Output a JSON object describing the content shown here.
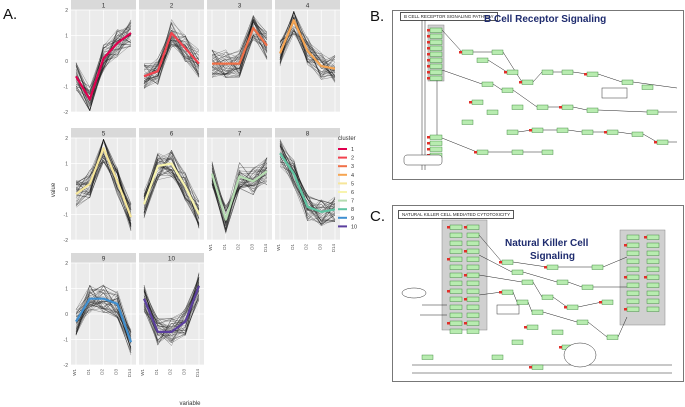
{
  "panel_labels": {
    "a": "A.",
    "b": "B.",
    "c": "C."
  },
  "chart_data": {
    "type": "line",
    "title": "",
    "xlabel": "variable",
    "ylabel": "value",
    "x": [
      "W1",
      "D1",
      "D2",
      "D3",
      "D14"
    ],
    "ylim": [
      -2,
      2
    ],
    "yticks": [
      -2,
      -1,
      0,
      1,
      2
    ],
    "legend_title": "cluster",
    "panels": [
      {
        "name": "1",
        "color": "#e0004f",
        "values": [
          -0.6,
          -1.5,
          0.1,
          0.7,
          1.1
        ]
      },
      {
        "name": "2",
        "color": "#f2434f",
        "values": [
          -0.6,
          -0.4,
          1.1,
          0.5,
          -0.1
        ]
      },
      {
        "name": "3",
        "color": "#f07048",
        "values": [
          -0.1,
          -0.1,
          -0.1,
          1.3,
          0.6
        ]
      },
      {
        "name": "4",
        "color": "#f6a552",
        "values": [
          0.3,
          1.6,
          0.4,
          -0.2,
          -0.3
        ]
      },
      {
        "name": "5",
        "color": "#f6e69a",
        "values": [
          -0.2,
          0.2,
          1.6,
          0.3,
          -1.1
        ]
      },
      {
        "name": "6",
        "color": "#f8f4ae",
        "values": [
          -0.6,
          0.9,
          1.0,
          0.1,
          -1.0
        ]
      },
      {
        "name": "7",
        "color": "#b5ddb1",
        "values": [
          0.6,
          -1.2,
          0.5,
          0.3,
          0.7
        ]
      },
      {
        "name": "8",
        "color": "#5fc4a2",
        "values": [
          1.4,
          0.6,
          -0.7,
          -0.9,
          -0.8
        ]
      },
      {
        "name": "9",
        "color": "#3f8fd0",
        "values": [
          -0.3,
          0.6,
          0.6,
          0.4,
          -1.1
        ]
      },
      {
        "name": "10",
        "color": "#5b3f9e",
        "values": [
          0.6,
          -0.7,
          -0.7,
          -0.3,
          1.1
        ]
      }
    ]
  },
  "pathway_b": {
    "box_title": "B CELL RECEPTOR SIGNALING PATHWAY",
    "heading": "B Cell Receptor Signaling"
  },
  "pathway_c": {
    "box_title": "NATURAL KILLER CELL MEDIATED CYTOTOXICITY",
    "heading_line1": "Natural Killer Cell",
    "heading_line2": "Signaling"
  }
}
